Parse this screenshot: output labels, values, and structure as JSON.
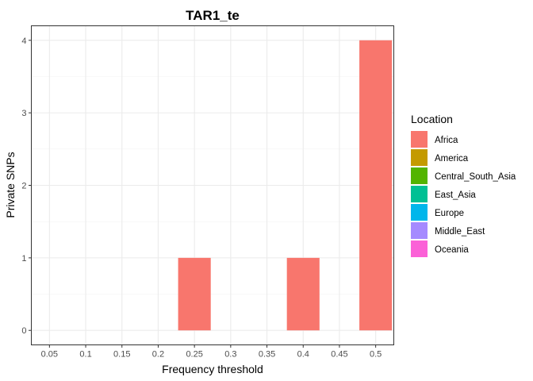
{
  "chart_data": {
    "type": "bar",
    "title": "TAR1_te",
    "xlabel": "Frequency threshold",
    "ylabel": "Private SNPs",
    "x_ticks": [
      "0.05",
      "0.1",
      "0.15",
      "0.2",
      "0.25",
      "0.3",
      "0.35",
      "0.4",
      "0.45",
      "0.5"
    ],
    "y_ticks": [
      "0",
      "1",
      "2",
      "3",
      "4"
    ],
    "xlim": [
      0.025,
      0.525
    ],
    "ylim": [
      -0.2,
      4.2
    ],
    "bar_width": 0.045,
    "grid": true,
    "legend_position": "right",
    "legend": {
      "title": "Location",
      "items": [
        {
          "name": "Africa",
          "color": "#F8766D"
        },
        {
          "name": "America",
          "color": "#C49A00"
        },
        {
          "name": "Central_South_Asia",
          "color": "#53B400"
        },
        {
          "name": "East_Asia",
          "color": "#00C094"
        },
        {
          "name": "Europe",
          "color": "#00B6EB"
        },
        {
          "name": "Middle_East",
          "color": "#A58AFF"
        },
        {
          "name": "Oceania",
          "color": "#FB61D7"
        }
      ]
    },
    "series": [
      {
        "name": "Africa",
        "color": "#F8766D",
        "points": [
          {
            "x": 0.25,
            "y": 1
          },
          {
            "x": 0.4,
            "y": 1
          },
          {
            "x": 0.5,
            "y": 4
          }
        ]
      }
    ]
  }
}
